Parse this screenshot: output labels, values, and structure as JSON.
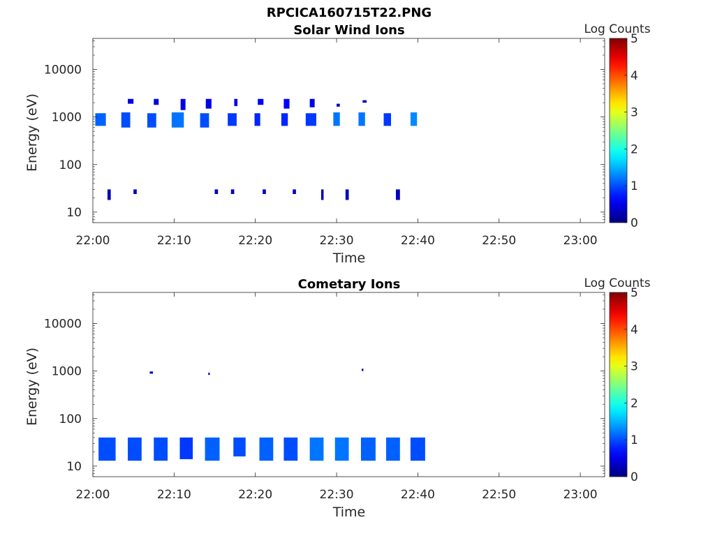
{
  "figure_title": "RPCICA160715T22.PNG",
  "colorbar_ticks": [
    "0",
    "1",
    "2",
    "3",
    "4",
    "5"
  ],
  "chart_data": [
    {
      "type": "heatmap",
      "title": "Solar Wind Ions",
      "xlabel": "Time",
      "ylabel": "Energy (eV)",
      "colorbar_label": "Log Counts",
      "x_ticks": [
        "22:00",
        "22:10",
        "22:20",
        "22:30",
        "22:40",
        "22:50",
        "23:00"
      ],
      "xlim_minutes": [
        0,
        63
      ],
      "y_scale": "log",
      "y_ticks": [
        "10",
        "100",
        "1000",
        "10000"
      ],
      "ylim": [
        6,
        45000
      ],
      "clim": [
        0,
        5
      ],
      "colormap": "jet",
      "cells": [
        {
          "t0": 0.3,
          "t1": 1.6,
          "e0": 650,
          "e1": 1200,
          "v": 1.1
        },
        {
          "t0": 3.5,
          "t1": 4.6,
          "e0": 600,
          "e1": 1250,
          "v": 1.0
        },
        {
          "t0": 6.7,
          "t1": 7.8,
          "e0": 600,
          "e1": 1200,
          "v": 1.0
        },
        {
          "t0": 9.7,
          "t1": 11.2,
          "e0": 600,
          "e1": 1250,
          "v": 1.2
        },
        {
          "t0": 13.2,
          "t1": 14.3,
          "e0": 600,
          "e1": 1200,
          "v": 1.0
        },
        {
          "t0": 16.6,
          "t1": 17.7,
          "e0": 650,
          "e1": 1200,
          "v": 0.9
        },
        {
          "t0": 19.9,
          "t1": 20.6,
          "e0": 650,
          "e1": 1200,
          "v": 0.8
        },
        {
          "t0": 23.2,
          "t1": 24.0,
          "e0": 650,
          "e1": 1200,
          "v": 0.8
        },
        {
          "t0": 26.2,
          "t1": 27.5,
          "e0": 650,
          "e1": 1200,
          "v": 0.9
        },
        {
          "t0": 29.6,
          "t1": 30.4,
          "e0": 650,
          "e1": 1250,
          "v": 1.2
        },
        {
          "t0": 32.7,
          "t1": 33.5,
          "e0": 650,
          "e1": 1250,
          "v": 1.2
        },
        {
          "t0": 35.8,
          "t1": 36.7,
          "e0": 650,
          "e1": 1200,
          "v": 0.9
        },
        {
          "t0": 39.1,
          "t1": 39.9,
          "e0": 650,
          "e1": 1250,
          "v": 1.3
        },
        {
          "t0": 4.3,
          "t1": 5.0,
          "e0": 1900,
          "e1": 2400,
          "v": 0.5
        },
        {
          "t0": 7.5,
          "t1": 8.1,
          "e0": 1800,
          "e1": 2400,
          "v": 0.5
        },
        {
          "t0": 10.8,
          "t1": 11.4,
          "e0": 1400,
          "e1": 2400,
          "v": 0.5
        },
        {
          "t0": 13.9,
          "t1": 14.6,
          "e0": 1500,
          "e1": 2400,
          "v": 0.5
        },
        {
          "t0": 17.4,
          "t1": 17.8,
          "e0": 1700,
          "e1": 2400,
          "v": 0.5
        },
        {
          "t0": 20.3,
          "t1": 21.0,
          "e0": 1800,
          "e1": 2400,
          "v": 0.6
        },
        {
          "t0": 23.5,
          "t1": 24.2,
          "e0": 1500,
          "e1": 2400,
          "v": 0.6
        },
        {
          "t0": 26.7,
          "t1": 27.3,
          "e0": 1600,
          "e1": 2400,
          "v": 0.5
        },
        {
          "t0": 30.0,
          "t1": 30.4,
          "e0": 1650,
          "e1": 1900,
          "v": 0.3
        },
        {
          "t0": 33.2,
          "t1": 33.7,
          "e0": 2000,
          "e1": 2250,
          "v": 0.3
        },
        {
          "t0": 1.8,
          "t1": 2.2,
          "e0": 18,
          "e1": 30,
          "v": 0.3
        },
        {
          "t0": 5.0,
          "t1": 5.4,
          "e0": 24,
          "e1": 30,
          "v": 0.3
        },
        {
          "t0": 15.0,
          "t1": 15.4,
          "e0": 24,
          "e1": 30,
          "v": 0.3
        },
        {
          "t0": 17.0,
          "t1": 17.4,
          "e0": 24,
          "e1": 30,
          "v": 0.3
        },
        {
          "t0": 20.9,
          "t1": 21.3,
          "e0": 24,
          "e1": 30,
          "v": 0.3
        },
        {
          "t0": 24.6,
          "t1": 25.0,
          "e0": 24,
          "e1": 30,
          "v": 0.3
        },
        {
          "t0": 28.1,
          "t1": 28.4,
          "e0": 18,
          "e1": 30,
          "v": 0.3
        },
        {
          "t0": 31.1,
          "t1": 31.5,
          "e0": 18,
          "e1": 30,
          "v": 0.3
        },
        {
          "t0": 37.3,
          "t1": 37.8,
          "e0": 18,
          "e1": 30,
          "v": 0.3
        }
      ]
    },
    {
      "type": "heatmap",
      "title": "Cometary Ions",
      "xlabel": "Time",
      "ylabel": "Energy (eV)",
      "colorbar_label": "Log Counts",
      "x_ticks": [
        "22:00",
        "22:10",
        "22:20",
        "22:30",
        "22:40",
        "22:50",
        "23:00"
      ],
      "xlim_minutes": [
        0,
        63
      ],
      "y_scale": "log",
      "y_ticks": [
        "10",
        "100",
        "1000",
        "10000"
      ],
      "ylim": [
        6,
        45000
      ],
      "clim": [
        0,
        5
      ],
      "colormap": "jet",
      "cells": [
        {
          "t0": 0.7,
          "t1": 2.8,
          "e0": 13,
          "e1": 40,
          "v": 1.0
        },
        {
          "t0": 4.3,
          "t1": 6.0,
          "e0": 13,
          "e1": 40,
          "v": 1.0
        },
        {
          "t0": 7.5,
          "t1": 9.2,
          "e0": 13,
          "e1": 40,
          "v": 1.0
        },
        {
          "t0": 10.7,
          "t1": 12.3,
          "e0": 14,
          "e1": 40,
          "v": 0.9
        },
        {
          "t0": 13.8,
          "t1": 15.6,
          "e0": 13,
          "e1": 40,
          "v": 1.1
        },
        {
          "t0": 17.3,
          "t1": 18.8,
          "e0": 16,
          "e1": 40,
          "v": 1.0
        },
        {
          "t0": 20.5,
          "t1": 22.2,
          "e0": 13,
          "e1": 40,
          "v": 1.1
        },
        {
          "t0": 23.5,
          "t1": 25.2,
          "e0": 13,
          "e1": 40,
          "v": 1.0
        },
        {
          "t0": 26.7,
          "t1": 28.4,
          "e0": 13,
          "e1": 40,
          "v": 1.2
        },
        {
          "t0": 29.8,
          "t1": 31.5,
          "e0": 13,
          "e1": 40,
          "v": 1.2
        },
        {
          "t0": 33.0,
          "t1": 34.8,
          "e0": 13,
          "e1": 40,
          "v": 1.1
        },
        {
          "t0": 36.1,
          "t1": 37.8,
          "e0": 13,
          "e1": 40,
          "v": 1.1
        },
        {
          "t0": 39.1,
          "t1": 40.9,
          "e0": 13,
          "e1": 40,
          "v": 1.0
        },
        {
          "t0": 7.0,
          "t1": 7.4,
          "e0": 880,
          "e1": 980,
          "v": 0.3
        },
        {
          "t0": 14.2,
          "t1": 14.4,
          "e0": 830,
          "e1": 920,
          "v": 0.3
        },
        {
          "t0": 33.1,
          "t1": 33.3,
          "e0": 1000,
          "e1": 1120,
          "v": 0.3
        }
      ]
    }
  ]
}
